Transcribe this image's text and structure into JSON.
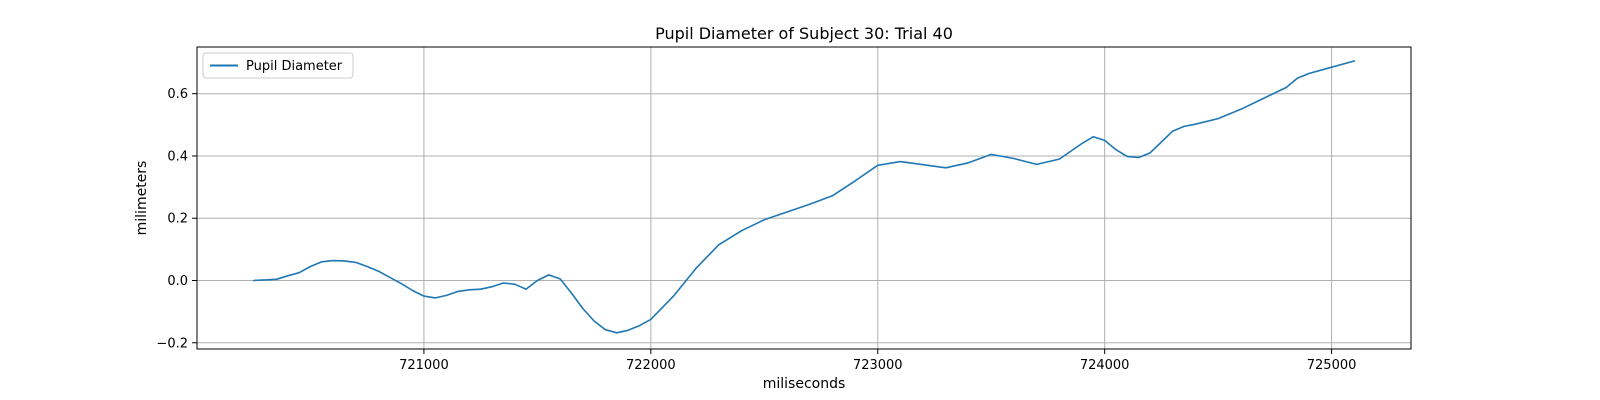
{
  "chart_data": {
    "type": "line",
    "title": "Pupil Diameter of Subject 30: Trial 40",
    "xlabel": "miliseconds",
    "ylabel": "milimeters",
    "xlim": [
      720000,
      725350
    ],
    "ylim": [
      -0.22,
      0.75
    ],
    "xticks": [
      721000,
      722000,
      723000,
      724000,
      725000
    ],
    "yticks": [
      -0.2,
      0.0,
      0.2,
      0.4,
      0.6
    ],
    "grid": true,
    "legend": {
      "placement": "top-left"
    },
    "series": [
      {
        "name": "Pupil Diameter",
        "color": "#1f77b4",
        "x": [
          720250,
          720300,
          720350,
          720400,
          720450,
          720500,
          720550,
          720600,
          720650,
          720700,
          720750,
          720800,
          720850,
          720900,
          720950,
          721000,
          721050,
          721100,
          721150,
          721200,
          721250,
          721300,
          721350,
          721400,
          721450,
          721500,
          721550,
          721600,
          721650,
          721700,
          721750,
          721800,
          721850,
          721900,
          721950,
          722000,
          722100,
          722200,
          722300,
          722400,
          722500,
          722600,
          722700,
          722800,
          722900,
          723000,
          723100,
          723200,
          723300,
          723400,
          723500,
          723600,
          723700,
          723800,
          723900,
          723950,
          724000,
          724050,
          724100,
          724150,
          724200,
          724250,
          724300,
          724350,
          724400,
          724500,
          724600,
          724700,
          724800,
          724850,
          724900,
          725000,
          725100
        ],
        "y": [
          0.0,
          0.002,
          0.004,
          0.015,
          0.025,
          0.045,
          0.06,
          0.064,
          0.063,
          0.058,
          0.045,
          0.03,
          0.01,
          -0.01,
          -0.032,
          -0.05,
          -0.056,
          -0.048,
          -0.035,
          -0.03,
          -0.028,
          -0.02,
          -0.008,
          -0.012,
          -0.028,
          0.0,
          0.018,
          0.005,
          -0.04,
          -0.09,
          -0.13,
          -0.158,
          -0.168,
          -0.16,
          -0.145,
          -0.125,
          -0.05,
          0.04,
          0.115,
          0.16,
          0.195,
          0.22,
          0.245,
          0.272,
          0.32,
          0.37,
          0.382,
          0.372,
          0.362,
          0.378,
          0.405,
          0.392,
          0.373,
          0.39,
          0.44,
          0.462,
          0.45,
          0.42,
          0.398,
          0.395,
          0.41,
          0.445,
          0.48,
          0.495,
          0.502,
          0.52,
          0.55,
          0.585,
          0.62,
          0.65,
          0.665,
          0.685,
          0.705
        ]
      }
    ]
  }
}
